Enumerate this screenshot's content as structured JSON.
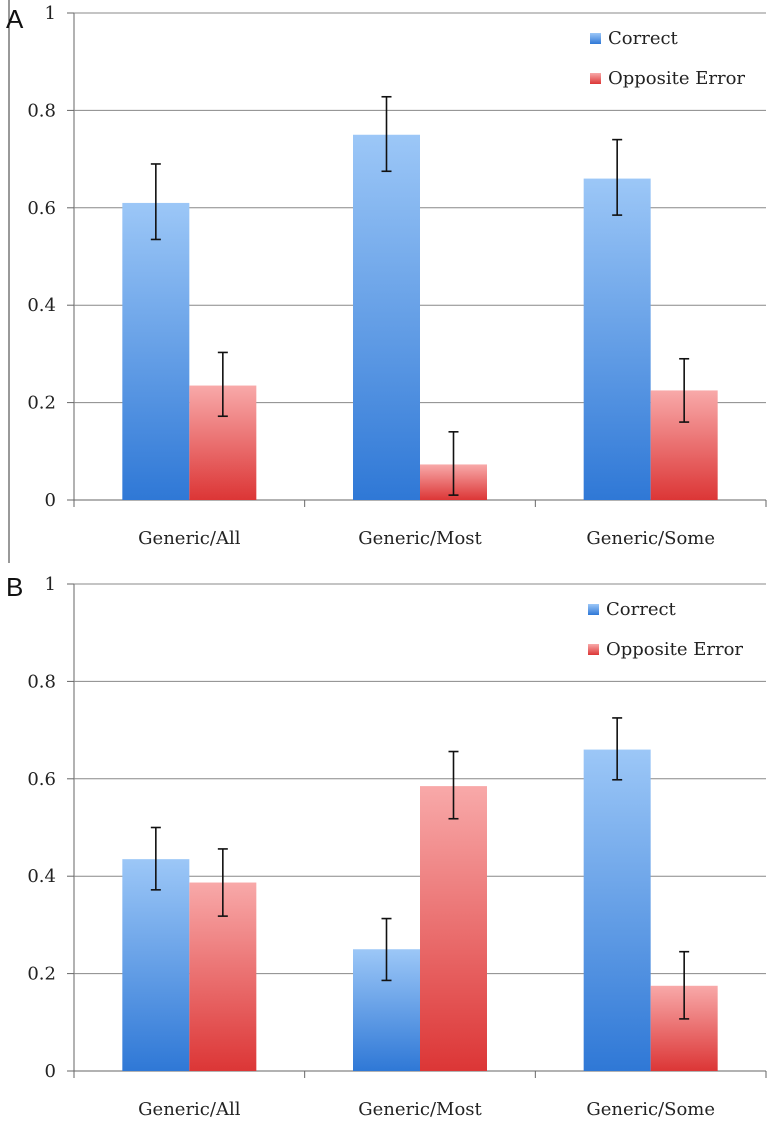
{
  "chart_data": [
    {
      "panel_label": "A",
      "type": "bar",
      "categories": [
        "Generic/All",
        "Generic/Most",
        "Generic/Some"
      ],
      "series": [
        {
          "name": "Correct",
          "values": [
            0.61,
            0.75,
            0.66
          ],
          "error_low": [
            0.535,
            0.675,
            0.585
          ],
          "error_high": [
            0.69,
            0.828,
            0.74
          ]
        },
        {
          "name": "Opposite Error",
          "values": [
            0.235,
            0.073,
            0.225
          ],
          "error_low": [
            0.172,
            0.01,
            0.16
          ],
          "error_high": [
            0.303,
            0.14,
            0.29
          ]
        }
      ],
      "ylim": [
        0,
        1
      ],
      "yticks": [
        "0",
        "0.2",
        "0.4",
        "0.6",
        "0.8",
        "1"
      ],
      "grid": true,
      "legend": "top-right",
      "colors": {
        "Correct": "#5b9bea",
        "Opposite Error": "#ee5c5c"
      }
    },
    {
      "panel_label": "B",
      "type": "bar",
      "categories": [
        "Generic/All",
        "Generic/Most",
        "Generic/Some"
      ],
      "series": [
        {
          "name": "Correct",
          "values": [
            0.435,
            0.25,
            0.66
          ],
          "error_low": [
            0.372,
            0.186,
            0.598
          ],
          "error_high": [
            0.5,
            0.313,
            0.725
          ]
        },
        {
          "name": "Opposite Error",
          "values": [
            0.387,
            0.585,
            0.175
          ],
          "error_low": [
            0.318,
            0.518,
            0.107
          ],
          "error_high": [
            0.456,
            0.656,
            0.245
          ]
        }
      ],
      "ylim": [
        0,
        1
      ],
      "yticks": [
        "0",
        "0.2",
        "0.4",
        "0.6",
        "0.8",
        "1"
      ],
      "grid": true,
      "legend": "top-right",
      "colors": {
        "Correct": "#5b9bea",
        "Opposite Error": "#ee5c5c"
      }
    }
  ]
}
